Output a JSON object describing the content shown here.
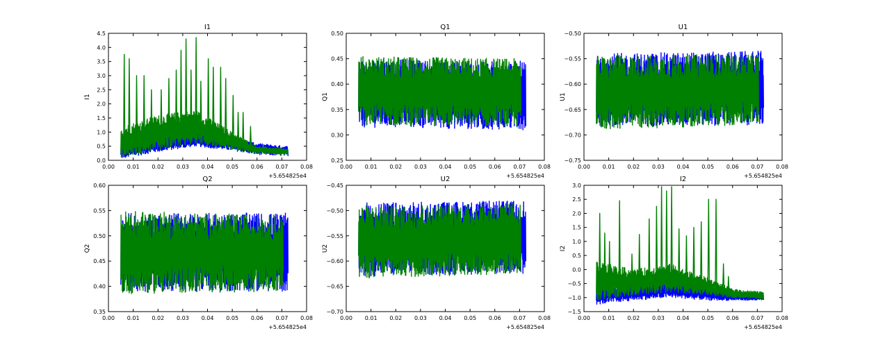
{
  "figure": {
    "background": "#ffffff"
  },
  "series_colors": {
    "blue": "#0000ff",
    "green": "#008000"
  },
  "chart_data": [
    {
      "id": "I1",
      "type": "line",
      "title": "I1",
      "xlabel": "",
      "ylabel": "I1",
      "xlim": [
        0.0,
        0.08
      ],
      "ylim": [
        0.0,
        4.5
      ],
      "xticks": [
        "0.00",
        "0.01",
        "0.02",
        "0.03",
        "0.04",
        "0.05",
        "0.06",
        "0.07",
        "0.08"
      ],
      "yticks": [
        "0.0",
        "0.5",
        "1.0",
        "1.5",
        "2.0",
        "2.5",
        "3.0",
        "3.5",
        "4.0",
        "4.5"
      ],
      "x_offset": "+5.654825e4",
      "grid": false,
      "legend": "none",
      "x_range": [
        0.005,
        0.0725
      ],
      "series": [
        {
          "color": "#0000ff",
          "x_end": 0.0725,
          "env_x": [
            0.005,
            0.02,
            0.035,
            0.05,
            0.06,
            0.0725
          ],
          "env_lo": [
            0.05,
            0.3,
            0.5,
            0.35,
            0.2,
            0.15
          ],
          "env_hi": [
            0.7,
            0.9,
            1.0,
            0.8,
            0.6,
            0.5
          ]
        },
        {
          "color": "#008000",
          "x_end": 0.0725,
          "env_x": [
            0.005,
            0.02,
            0.035,
            0.05,
            0.06,
            0.0725
          ],
          "env_lo": [
            0.1,
            0.4,
            0.6,
            0.4,
            0.25,
            0.2
          ],
          "env_hi": [
            1.2,
            1.6,
            1.8,
            1.0,
            0.5,
            0.4
          ],
          "spikes_x": [
            0.006,
            0.008,
            0.011,
            0.014,
            0.017,
            0.021,
            0.024,
            0.027,
            0.029,
            0.031,
            0.033,
            0.035,
            0.037,
            0.04,
            0.042,
            0.045,
            0.047,
            0.05,
            0.052,
            0.054,
            0.057
          ],
          "spikes_y": [
            3.75,
            3.6,
            3.0,
            3.0,
            2.5,
            2.5,
            2.9,
            3.2,
            3.9,
            4.3,
            3.2,
            4.35,
            2.8,
            3.6,
            3.3,
            3.3,
            2.9,
            2.3,
            1.7,
            1.7,
            1.2
          ]
        }
      ]
    },
    {
      "id": "Q1",
      "type": "line",
      "title": "Q1",
      "xlabel": "",
      "ylabel": "Q1",
      "xlim": [
        0.0,
        0.08
      ],
      "ylim": [
        0.25,
        0.5
      ],
      "xticks": [
        "0.00",
        "0.01",
        "0.02",
        "0.03",
        "0.04",
        "0.05",
        "0.06",
        "0.07",
        "0.08"
      ],
      "yticks": [
        "0.25",
        "0.30",
        "0.35",
        "0.40",
        "0.45",
        "0.50"
      ],
      "x_offset": "+5.654825e4",
      "grid": false,
      "legend": "none",
      "x_range": [
        0.005,
        0.0725
      ],
      "series": [
        {
          "color": "#0000ff",
          "x_end": 0.0725,
          "env_x": [
            0.005,
            0.0725
          ],
          "env_lo": [
            0.315,
            0.31
          ],
          "env_hi": [
            0.45,
            0.445
          ]
        },
        {
          "color": "#008000",
          "x_end": 0.0705,
          "env_x": [
            0.005,
            0.0705
          ],
          "env_lo": [
            0.32,
            0.315
          ],
          "env_hi": [
            0.455,
            0.45
          ]
        }
      ]
    },
    {
      "id": "U1",
      "type": "line",
      "title": "U1",
      "xlabel": "",
      "ylabel": "U1",
      "xlim": [
        0.0,
        0.08
      ],
      "ylim": [
        -0.75,
        -0.5
      ],
      "xticks": [
        "0.00",
        "0.01",
        "0.02",
        "0.03",
        "0.04",
        "0.05",
        "0.06",
        "0.07",
        "0.08"
      ],
      "yticks": [
        "−0.75",
        "−0.70",
        "−0.65",
        "−0.60",
        "−0.55",
        "−0.50"
      ],
      "x_offset": "+5.654825e4",
      "grid": false,
      "legend": "none",
      "x_range": [
        0.005,
        0.0725
      ],
      "series": [
        {
          "color": "#0000ff",
          "x_end": 0.0725,
          "env_x": [
            0.005,
            0.0725
          ],
          "env_lo": [
            -0.685,
            -0.68
          ],
          "env_hi": [
            -0.54,
            -0.535
          ]
        },
        {
          "color": "#008000",
          "x_end": 0.0705,
          "env_x": [
            0.005,
            0.0705
          ],
          "env_lo": [
            -0.69,
            -0.68
          ],
          "env_hi": [
            -0.545,
            -0.54
          ]
        }
      ]
    },
    {
      "id": "Q2",
      "type": "line",
      "title": "Q2",
      "xlabel": "",
      "ylabel": "Q2",
      "xlim": [
        0.0,
        0.08
      ],
      "ylim": [
        0.35,
        0.6
      ],
      "xticks": [
        "0.00",
        "0.01",
        "0.02",
        "0.03",
        "0.04",
        "0.05",
        "0.06",
        "0.07",
        "0.08"
      ],
      "yticks": [
        "0.35",
        "0.40",
        "0.45",
        "0.50",
        "0.55",
        "0.60"
      ],
      "x_offset": "+5.654825e4",
      "grid": false,
      "legend": "none",
      "x_range": [
        0.005,
        0.0725
      ],
      "series": [
        {
          "color": "#0000ff",
          "x_end": 0.0725,
          "env_x": [
            0.005,
            0.0725
          ],
          "env_lo": [
            0.39,
            0.39
          ],
          "env_hi": [
            0.545,
            0.545
          ]
        },
        {
          "color": "#008000",
          "x_end": 0.0705,
          "env_x": [
            0.005,
            0.0705
          ],
          "env_lo": [
            0.385,
            0.39
          ],
          "env_hi": [
            0.55,
            0.54
          ]
        }
      ]
    },
    {
      "id": "U2",
      "type": "line",
      "title": "U2",
      "xlabel": "",
      "ylabel": "U2",
      "xlim": [
        0.0,
        0.08
      ],
      "ylim": [
        -0.7,
        -0.45
      ],
      "xticks": [
        "0.00",
        "0.01",
        "0.02",
        "0.03",
        "0.04",
        "0.05",
        "0.06",
        "0.07",
        "0.08"
      ],
      "yticks": [
        "−0.70",
        "−0.65",
        "−0.60",
        "−0.55",
        "−0.50",
        "−0.45"
      ],
      "x_offset": "+5.654825e4",
      "grid": false,
      "legend": "none",
      "x_range": [
        0.005,
        0.0725
      ],
      "series": [
        {
          "color": "#0000ff",
          "x_end": 0.0725,
          "env_x": [
            0.005,
            0.0725
          ],
          "env_lo": [
            -0.63,
            -0.625
          ],
          "env_hi": [
            -0.485,
            -0.48
          ]
        },
        {
          "color": "#008000",
          "x_end": 0.0705,
          "env_x": [
            0.005,
            0.0705
          ],
          "env_lo": [
            -0.635,
            -0.625
          ],
          "env_hi": [
            -0.49,
            -0.485
          ]
        }
      ]
    },
    {
      "id": "I2",
      "type": "line",
      "title": "I2",
      "xlabel": "",
      "ylabel": "I2",
      "xlim": [
        0.0,
        0.08
      ],
      "ylim": [
        -1.5,
        3.0
      ],
      "xticks": [
        "0.00",
        "0.01",
        "0.02",
        "0.03",
        "0.04",
        "0.05",
        "0.06",
        "0.07",
        "0.08"
      ],
      "yticks": [
        "−1.5",
        "−1.0",
        "−0.5",
        "0.0",
        "0.5",
        "1.0",
        "1.5",
        "2.0",
        "2.5",
        "3.0"
      ],
      "x_offset": "+5.654825e4",
      "grid": false,
      "legend": "none",
      "x_range": [
        0.005,
        0.0725
      ],
      "series": [
        {
          "color": "#0000ff",
          "x_end": 0.0725,
          "env_x": [
            0.005,
            0.02,
            0.035,
            0.05,
            0.06,
            0.0725
          ],
          "env_lo": [
            -1.25,
            -1.1,
            -1.0,
            -1.1,
            -1.1,
            -1.1
          ],
          "env_hi": [
            -0.6,
            -0.5,
            -0.4,
            -0.6,
            -0.8,
            -0.9
          ]
        },
        {
          "color": "#008000",
          "x_end": 0.0725,
          "env_x": [
            0.005,
            0.02,
            0.035,
            0.05,
            0.06,
            0.0725
          ],
          "env_lo": [
            -1.1,
            -0.9,
            -0.8,
            -0.9,
            -1.0,
            -1.05
          ],
          "env_hi": [
            0.3,
            0.0,
            0.2,
            -0.3,
            -0.7,
            -0.8
          ],
          "spikes_x": [
            0.006,
            0.008,
            0.01,
            0.014,
            0.019,
            0.022,
            0.026,
            0.029,
            0.031,
            0.033,
            0.035,
            0.038,
            0.041,
            0.044,
            0.047,
            0.05,
            0.053,
            0.056,
            0.058
          ],
          "spikes_y": [
            2.0,
            1.3,
            1.0,
            2.45,
            0.55,
            1.25,
            1.8,
            2.25,
            2.95,
            2.8,
            2.95,
            1.45,
            1.2,
            1.5,
            1.7,
            2.5,
            2.5,
            0.2,
            -0.25
          ]
        }
      ]
    }
  ]
}
